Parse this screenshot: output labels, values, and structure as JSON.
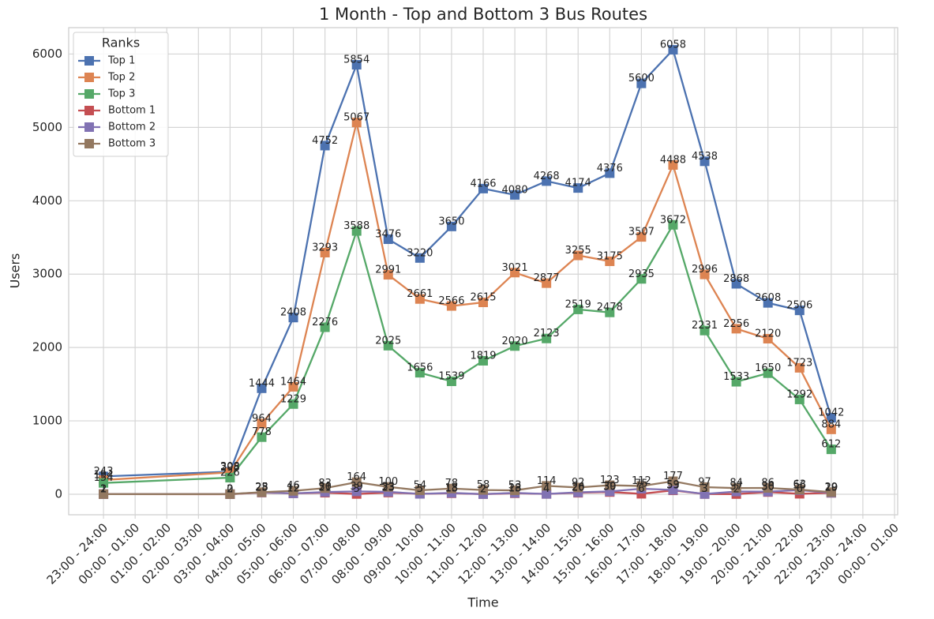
{
  "chart_data": {
    "type": "line",
    "title": "1 Month - Top and Bottom 3 Bus Routes",
    "xlabel": "Time",
    "ylabel": "Users",
    "legend_title": "Ranks",
    "legend": "upper left",
    "grid": true,
    "x": [
      0,
      4,
      5,
      6,
      7,
      8,
      9,
      10,
      11,
      12,
      13,
      14,
      15,
      16,
      17,
      18,
      19,
      20,
      21,
      22,
      23
    ],
    "xlim": [
      -1.1,
      25.1
    ],
    "xticks": [
      {
        "value": 0,
        "label": "23:00 - 24:00"
      },
      {
        "value": 1,
        "label": "00:00 - 01:00"
      },
      {
        "value": 2,
        "label": "01:00 - 02:00"
      },
      {
        "value": 3,
        "label": "02:00 - 03:00"
      },
      {
        "value": 4,
        "label": "03:00 - 04:00"
      },
      {
        "value": 5,
        "label": "04:00 - 05:00"
      },
      {
        "value": 6,
        "label": "05:00 - 06:00"
      },
      {
        "value": 7,
        "label": "06:00 - 07:00"
      },
      {
        "value": 8,
        "label": "07:00 - 08:00"
      },
      {
        "value": 9,
        "label": "08:00 - 09:00"
      },
      {
        "value": 10,
        "label": "09:00 - 10:00"
      },
      {
        "value": 11,
        "label": "10:00 - 11:00"
      },
      {
        "value": 12,
        "label": "11:00 - 12:00"
      },
      {
        "value": 13,
        "label": "12:00 - 13:00"
      },
      {
        "value": 14,
        "label": "13:00 - 14:00"
      },
      {
        "value": 15,
        "label": "14:00 - 15:00"
      },
      {
        "value": 16,
        "label": "15:00 - 16:00"
      },
      {
        "value": 17,
        "label": "16:00 - 17:00"
      },
      {
        "value": 18,
        "label": "17:00 - 18:00"
      },
      {
        "value": 19,
        "label": "18:00 - 19:00"
      },
      {
        "value": 20,
        "label": "19:00 - 20:00"
      },
      {
        "value": 21,
        "label": "20:00 - 21:00"
      },
      {
        "value": 22,
        "label": "21:00 - 22:00"
      },
      {
        "value": 23,
        "label": "22:00 - 23:00"
      },
      {
        "value": 24,
        "label": "23:00 - 24:00"
      },
      {
        "value": 25,
        "label": "00:00 - 01:00"
      }
    ],
    "ylim": [
      -280,
      6360
    ],
    "yticks": [
      0,
      1000,
      2000,
      3000,
      4000,
      5000,
      6000
    ],
    "series": [
      {
        "name": "Top 1",
        "color": "#4c72b0",
        "values": [
          243,
          308,
          1444,
          2408,
          4752,
          5854,
          3476,
          3220,
          3650,
          4166,
          4080,
          4268,
          4174,
          4376,
          5600,
          6058,
          4538,
          2868,
          2608,
          2506,
          1042
        ]
      },
      {
        "name": "Top 2",
        "color": "#dd8452",
        "values": [
          194,
          298,
          964,
          1464,
          3293,
          5067,
          2991,
          2661,
          2566,
          2615,
          3021,
          2877,
          3255,
          3175,
          3507,
          4488,
          2996,
          2256,
          2120,
          1723,
          884
        ]
      },
      {
        "name": "Top 3",
        "color": "#55a868",
        "values": [
          154,
          226,
          778,
          1229,
          2276,
          3588,
          2025,
          1656,
          1539,
          1819,
          2020,
          2123,
          2519,
          2478,
          2935,
          3672,
          2231,
          1533,
          1650,
          1292,
          612
        ]
      },
      {
        "name": "Bottom 1",
        "color": "#c44e52",
        "values": [
          1,
          0,
          23,
          12,
          21,
          3,
          23,
          5,
          13,
          2,
          13,
          4,
          20,
          30,
          6,
          53,
          3,
          2,
          30,
          6,
          19
        ]
      },
      {
        "name": "Bottom 2",
        "color": "#8172b3",
        "values": [
          2,
          2,
          25,
          12,
          30,
          39,
          33,
          5,
          18,
          2,
          18,
          4,
          26,
          39,
          75,
          59,
          3,
          37,
          36,
          56,
          20
        ]
      },
      {
        "name": "Bottom 3",
        "color": "#937860",
        "values": [
          2,
          2,
          28,
          46,
          83,
          164,
          100,
          54,
          78,
          58,
          53,
          114,
          92,
          123,
          112,
          177,
          97,
          84,
          86,
          63,
          29
        ]
      }
    ]
  }
}
